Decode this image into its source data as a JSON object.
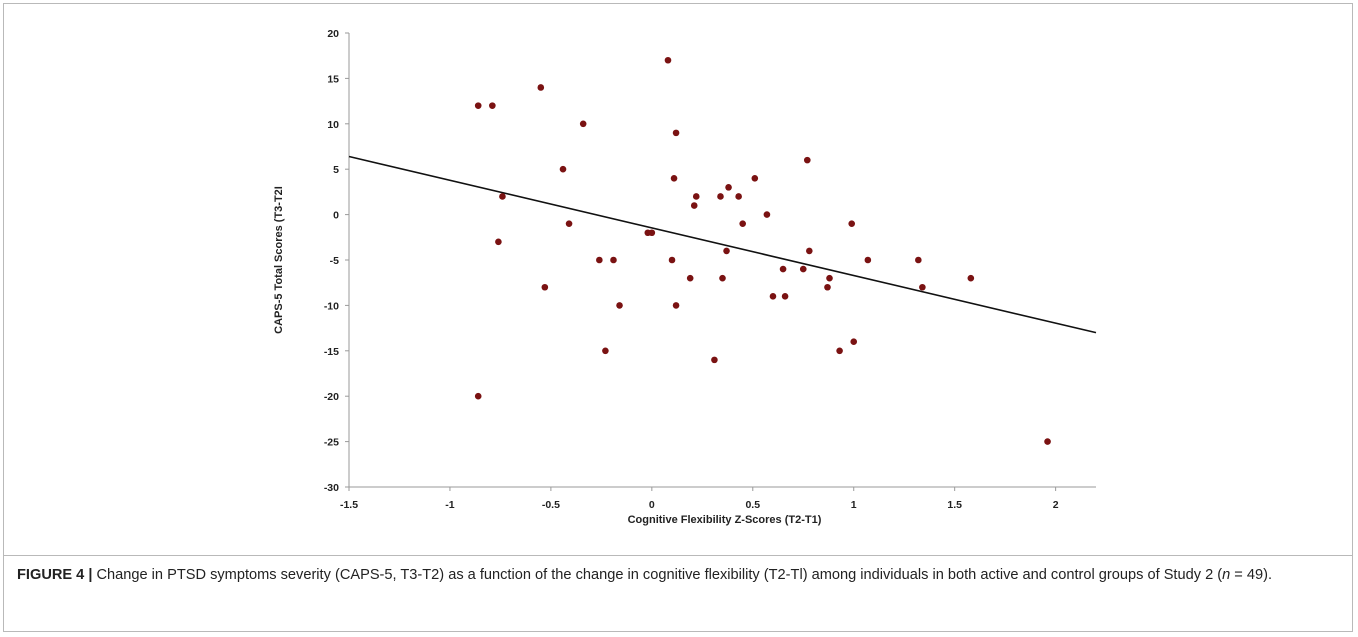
{
  "caption": {
    "label": "FIGURE 4 |",
    "text_before_n": " Change in PTSD symptoms severity (CAPS-5, T3-T2) as a function of the change in cognitive flexibility (T2-Tl) among individuals in both active and control groups of Study 2 (",
    "n_symbol": "n",
    "text_after_n": " = 49)."
  },
  "chart_data": {
    "type": "scatter",
    "xlabel": "Cognitive Flexibility Z-Scores (T2-T1)",
    "ylabel": "CAPS-5 Total Scores (T3-T2I",
    "xlim": [
      -1.5,
      2.2
    ],
    "ylim": [
      -30,
      20
    ],
    "xticks": [
      -1.5,
      -1,
      -0.5,
      0,
      0.5,
      1,
      1.5,
      2
    ],
    "xtick_labels": [
      "-1.5",
      "-1",
      "-0.5",
      "0",
      "0.5",
      "1",
      "1.5",
      "2"
    ],
    "yticks": [
      20,
      15,
      10,
      5,
      0,
      -5,
      -10,
      -15,
      -20,
      -25,
      -30
    ],
    "ytick_labels": [
      "20",
      "15",
      "10",
      "5",
      "0",
      "-5",
      "-10",
      "-15",
      "-20",
      "-25",
      "-30"
    ],
    "grid": false,
    "point_color": "#7a1212",
    "trendline": {
      "x": [
        -1.5,
        2.2
      ],
      "y": [
        6.4,
        -13.0
      ],
      "color": "#111111"
    },
    "points": [
      {
        "x": -0.86,
        "y": 12
      },
      {
        "x": -0.79,
        "y": 12
      },
      {
        "x": -0.55,
        "y": 14
      },
      {
        "x": -0.34,
        "y": 10
      },
      {
        "x": -0.44,
        "y": 5
      },
      {
        "x": -0.74,
        "y": 2
      },
      {
        "x": -0.76,
        "y": -3
      },
      {
        "x": -0.41,
        "y": -1
      },
      {
        "x": -0.53,
        "y": -8
      },
      {
        "x": -0.26,
        "y": -5
      },
      {
        "x": -0.19,
        "y": -5
      },
      {
        "x": -0.16,
        "y": -10
      },
      {
        "x": -0.23,
        "y": -15
      },
      {
        "x": -0.86,
        "y": -20
      },
      {
        "x": -0.02,
        "y": -2
      },
      {
        "x": 0.0,
        "y": -2
      },
      {
        "x": 0.08,
        "y": 17
      },
      {
        "x": 0.12,
        "y": 9
      },
      {
        "x": 0.11,
        "y": 4
      },
      {
        "x": 0.22,
        "y": 2
      },
      {
        "x": 0.21,
        "y": 1
      },
      {
        "x": 0.1,
        "y": -5
      },
      {
        "x": 0.19,
        "y": -7
      },
      {
        "x": 0.12,
        "y": -10
      },
      {
        "x": 0.31,
        "y": -16
      },
      {
        "x": 0.34,
        "y": 2
      },
      {
        "x": 0.38,
        "y": 3
      },
      {
        "x": 0.43,
        "y": 2
      },
      {
        "x": 0.45,
        "y": -1
      },
      {
        "x": 0.51,
        "y": 4
      },
      {
        "x": 0.37,
        "y": -4
      },
      {
        "x": 0.35,
        "y": -7
      },
      {
        "x": 0.57,
        "y": 0
      },
      {
        "x": 0.6,
        "y": -9
      },
      {
        "x": 0.65,
        "y": -6
      },
      {
        "x": 0.66,
        "y": -9
      },
      {
        "x": 0.77,
        "y": 6
      },
      {
        "x": 0.78,
        "y": -4
      },
      {
        "x": 0.75,
        "y": -6
      },
      {
        "x": 0.87,
        "y": -8
      },
      {
        "x": 0.88,
        "y": -7
      },
      {
        "x": 0.93,
        "y": -15
      },
      {
        "x": 0.99,
        "y": -1
      },
      {
        "x": 1.0,
        "y": -14
      },
      {
        "x": 1.07,
        "y": -5
      },
      {
        "x": 1.32,
        "y": -5
      },
      {
        "x": 1.34,
        "y": -8
      },
      {
        "x": 1.58,
        "y": -7
      },
      {
        "x": 1.96,
        "y": -25
      }
    ]
  }
}
